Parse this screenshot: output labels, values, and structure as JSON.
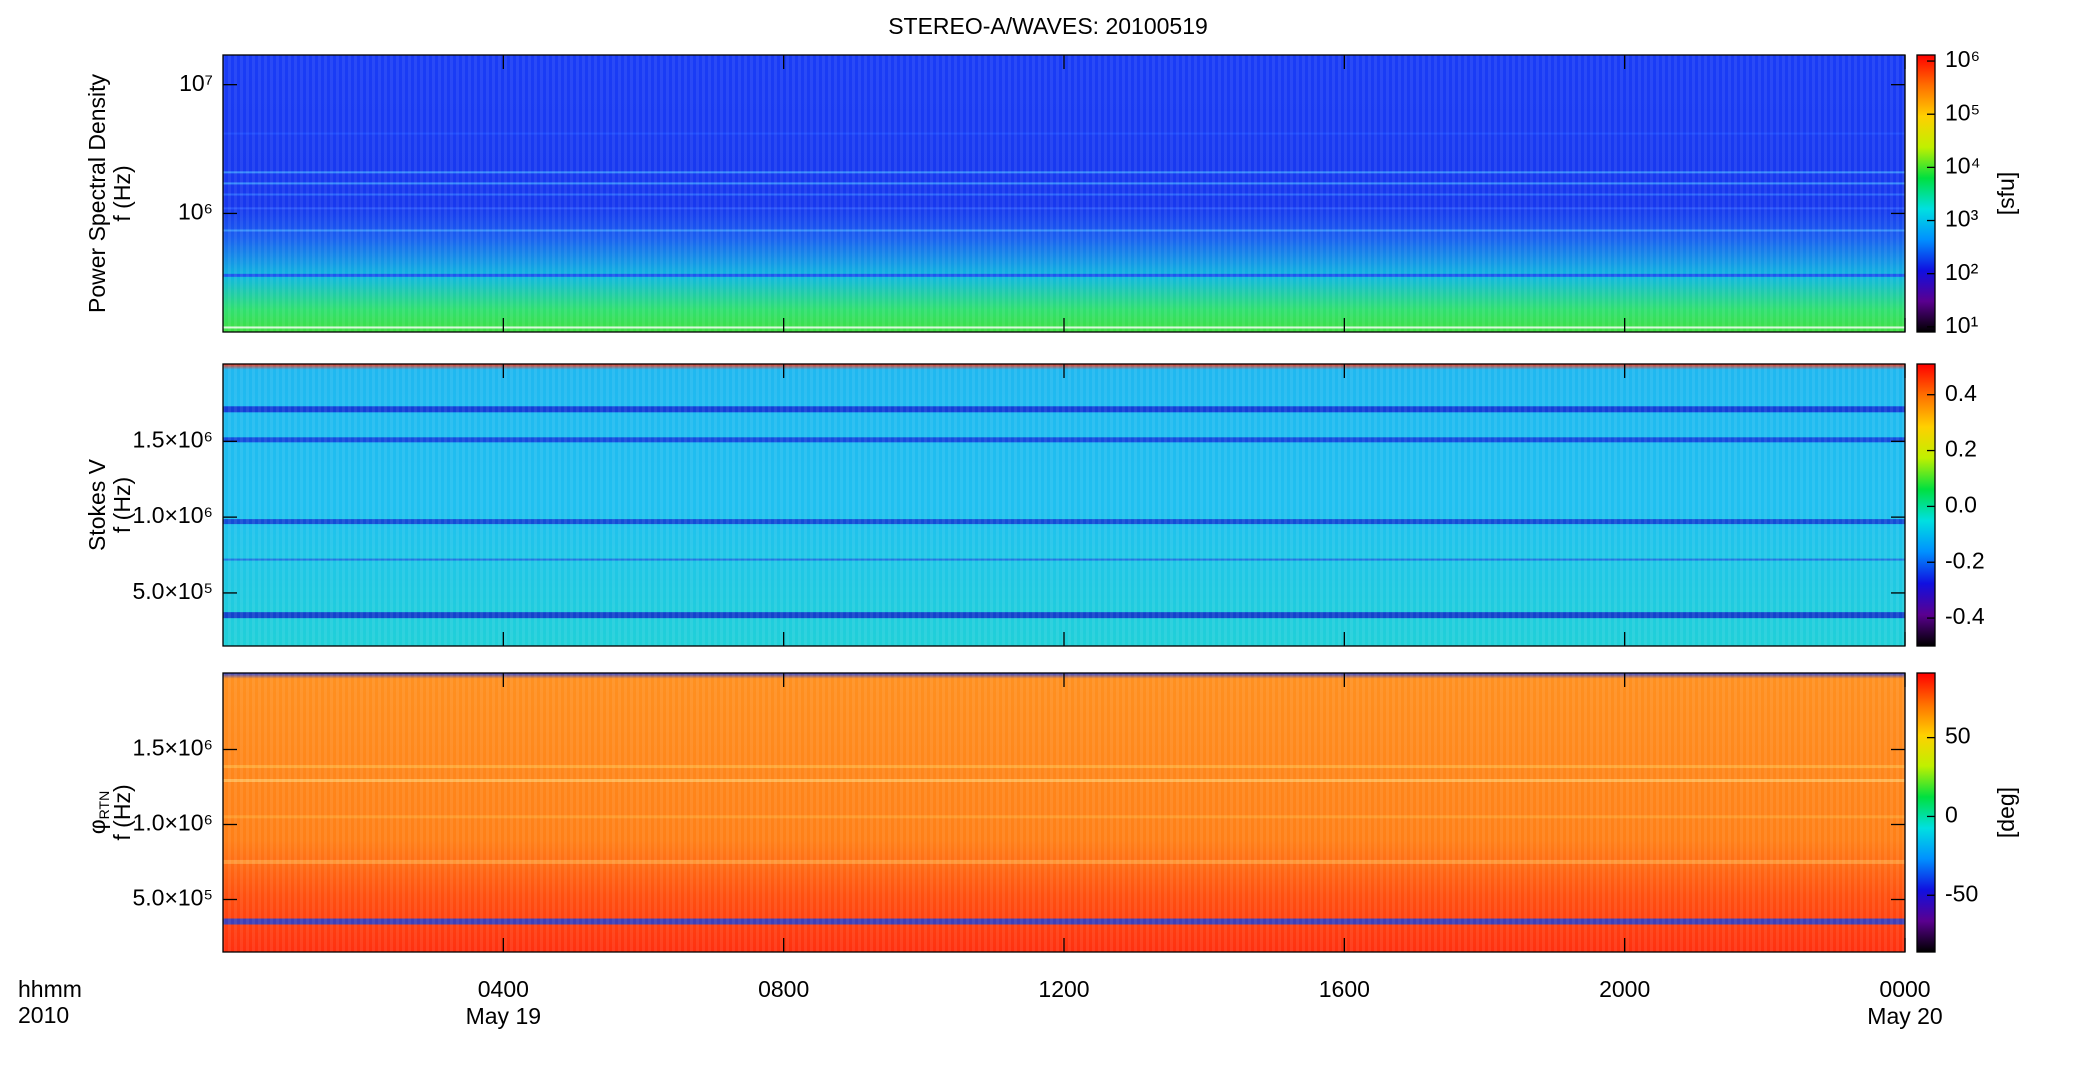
{
  "chart_data": {
    "type": "spectrogram",
    "title": "STEREO-A/WAVES: 20100519",
    "xlim": [
      0,
      24
    ],
    "xticks": [
      {
        "value": 4,
        "label": "0400"
      },
      {
        "value": 8,
        "label": "0800"
      },
      {
        "value": 12,
        "label": "1200"
      },
      {
        "value": 16,
        "label": "1600"
      },
      {
        "value": 20,
        "label": "2000"
      },
      {
        "value": 24,
        "label": "0000"
      }
    ],
    "date_labels": [
      {
        "value": 4,
        "label": "May 19"
      },
      {
        "value": 24,
        "label": "May 20"
      }
    ],
    "xlabel": [
      "hhmm",
      "2010"
    ],
    "colormap": [
      "#000000",
      "#5a0090",
      "#1010e0",
      "#0090ff",
      "#00e0e0",
      "#00e040",
      "#c0f000",
      "#ffd000",
      "#ff7000",
      "#ff0000"
    ],
    "panels": [
      {
        "ylabel": [
          "Power Spectral Density",
          "f (Hz)"
        ],
        "ylog": true,
        "ylim": [
          120000,
          17000000
        ],
        "yticks": [
          {
            "value": 1000000,
            "label": "10⁶"
          },
          {
            "value": 10000000,
            "label": "10⁷"
          }
        ],
        "clog": true,
        "clim": [
          8,
          1300000
        ],
        "cticks": [
          {
            "value": 10,
            "label": "10¹"
          },
          {
            "value": 100,
            "label": "10²"
          },
          {
            "value": 1000,
            "label": "10³"
          },
          {
            "value": 10000,
            "label": "10⁴"
          },
          {
            "value": 100000,
            "label": "10⁵"
          },
          {
            "value": 1000000,
            "label": "10⁶"
          }
        ],
        "cunit": "[sfu]"
      },
      {
        "ylabel": [
          "Stokes V",
          "f (Hz)"
        ],
        "ylog": false,
        "ylim": [
          150000,
          2010000
        ],
        "yticks": [
          {
            "value": 500000,
            "label": "5.0×10⁵"
          },
          {
            "value": 1000000,
            "label": "1.0×10⁶"
          },
          {
            "value": 1500000,
            "label": "1.5×10⁶"
          }
        ],
        "clog": false,
        "clim": [
          -0.5,
          0.51
        ],
        "cticks": [
          -0.4,
          -0.2,
          {
            "value": 0,
            "label": "0.0"
          },
          0.2,
          0.4
        ]
      },
      {
        "ylabel": [
          "φ",
          "f (Hz)"
        ],
        "ylabel_subscript": "RTN",
        "ylog": false,
        "ylim": [
          150000,
          2010000
        ],
        "yticks": [
          {
            "value": 500000,
            "label": "5.0×10⁵"
          },
          {
            "value": 1000000,
            "label": "1.0×10⁶"
          },
          {
            "value": 1500000,
            "label": "1.5×10⁶"
          }
        ],
        "clog": false,
        "clim": [
          -86,
          91
        ],
        "cticks": [
          -50,
          0,
          50
        ],
        "cunit": "[deg]"
      }
    ]
  }
}
